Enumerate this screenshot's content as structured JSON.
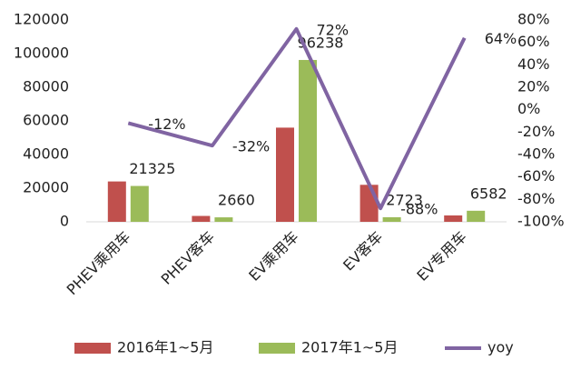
{
  "chart_data": {
    "type": "bar",
    "categories": [
      "PHEV乘用车",
      "PHEV客车",
      "EV乘用车",
      "EV客车",
      "EV专用车"
    ],
    "series": [
      {
        "name": "2016年1~5月",
        "type": "bar",
        "color": "#c0504d",
        "values": [
          24000,
          3500,
          56000,
          22000,
          3800
        ]
      },
      {
        "name": "2017年1~5月",
        "type": "bar",
        "color": "#9bbb59",
        "values": [
          21325,
          2660,
          96238,
          2723,
          6582
        ],
        "show_labels": true
      },
      {
        "name": "yoy",
        "type": "line",
        "axis": "y2",
        "color": "#8064a2",
        "values": [
          -12,
          -32,
          72,
          -88,
          64
        ],
        "value_labels": [
          "-12%",
          "-32%",
          "72%",
          "-88%",
          "64%"
        ]
      }
    ],
    "ylim": [
      0,
      120000
    ],
    "yticks": [
      0,
      20000,
      40000,
      60000,
      80000,
      100000,
      120000
    ],
    "y2lim": [
      -100,
      80
    ],
    "y2ticks": [
      {
        "value": -100,
        "label": "-100%"
      },
      {
        "value": -80,
        "label": "-80%"
      },
      {
        "value": -60,
        "label": "-60%"
      },
      {
        "value": -40,
        "label": "-40%"
      },
      {
        "value": -20,
        "label": "-20%"
      },
      {
        "value": 0,
        "label": "0%"
      },
      {
        "value": 20,
        "label": "20%"
      },
      {
        "value": 40,
        "label": "40%"
      },
      {
        "value": 60,
        "label": "60%"
      },
      {
        "value": 80,
        "label": "80%"
      }
    ],
    "grid": false,
    "legend": "bottom"
  }
}
